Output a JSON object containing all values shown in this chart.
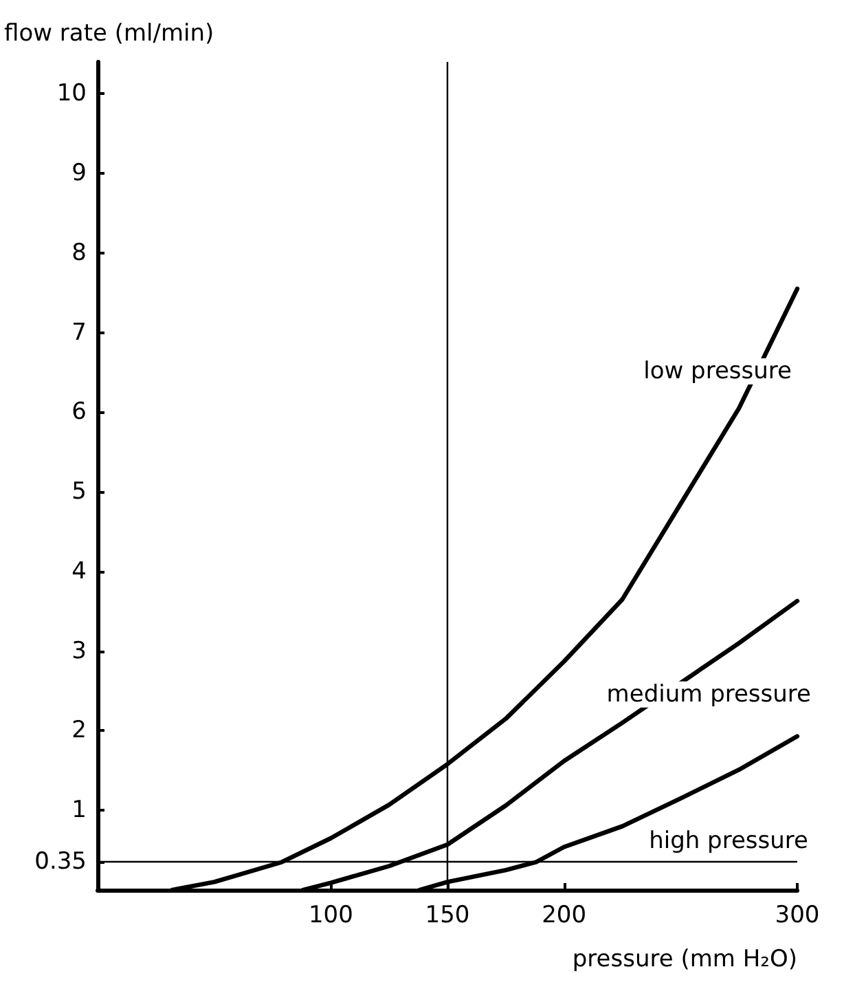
{
  "chart_data": {
    "type": "line",
    "xlabel": "pressure (mm H₂O)",
    "ylabel": "flow rate (ml/min)",
    "xlim": [
      0,
      300
    ],
    "xticks": [
      100,
      150,
      200,
      300
    ],
    "ylim": [
      0,
      10.4
    ],
    "yticks": [
      0.35,
      1,
      2,
      3,
      4,
      5,
      6,
      7,
      8,
      9,
      10
    ],
    "grid": false,
    "legend": false,
    "marker": "none",
    "line_style": "solid",
    "series": [
      {
        "name": "low pressure",
        "color": "#000000",
        "x": [
          32,
          50,
          79,
          100,
          125,
          150,
          175,
          200,
          225,
          250,
          275,
          300
        ],
        "values": [
          0,
          0.1,
          0.35,
          0.65,
          1.07,
          1.58,
          2.15,
          2.87,
          3.65,
          4.85,
          6.05,
          7.55
        ]
      },
      {
        "name": "medium pressure",
        "color": "#000000",
        "x": [
          88,
          100,
          125,
          150,
          175,
          200,
          225,
          250,
          275,
          300
        ],
        "values": [
          0,
          0.09,
          0.3,
          0.57,
          1.06,
          1.62,
          2.1,
          2.6,
          3.1,
          3.63
        ]
      },
      {
        "name": "high pressure",
        "color": "#000000",
        "x": [
          138,
          150,
          175,
          188,
          200,
          225,
          250,
          275,
          300
        ],
        "values": [
          0,
          0.1,
          0.25,
          0.35,
          0.54,
          0.8,
          1.15,
          1.51,
          1.93
        ]
      }
    ],
    "ref_lines": [
      {
        "axis": "x",
        "value": 150,
        "color": "#000000"
      },
      {
        "axis": "y",
        "value": 0.35,
        "color": "#000000"
      }
    ]
  }
}
